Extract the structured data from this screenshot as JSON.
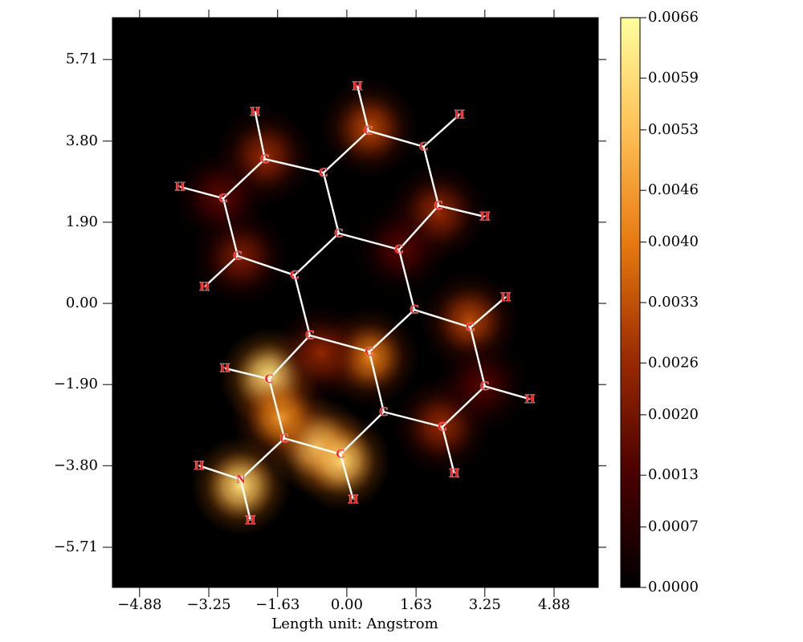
{
  "chart_data": {
    "type": "heatmap",
    "x_label": "Length unit: Angstrom",
    "xlim": [
      -5.52,
      5.92
    ],
    "xticks": [
      {
        "value": -4.88,
        "label": "−4.88"
      },
      {
        "value": -3.25,
        "label": "−3.25"
      },
      {
        "value": -1.63,
        "label": "−1.63"
      },
      {
        "value": 0,
        "label": "0.00"
      },
      1.63,
      3.25,
      4.88
    ],
    "ylim": [
      -6.65,
      6.69
    ],
    "yticks": [
      {
        "value": -5.71,
        "label": "−5.71"
      },
      {
        "value": -3.8,
        "label": "−3.80"
      },
      {
        "value": -1.9,
        "label": "−1.90"
      },
      {
        "value": 0,
        "label": "0.00"
      },
      {
        "value": 1.9,
        "label": "1.90"
      },
      {
        "value": 3.8,
        "label": "3.80"
      },
      5.71
    ],
    "zlim": [
      0,
      0.0066
    ],
    "zticks": [
      {
        "value": 0,
        "label": "0.0000"
      },
      0.0007,
      0.0013,
      {
        "value": 0.002,
        "label": "0.0020"
      },
      0.0026,
      0.0033,
      {
        "value": 0.004,
        "label": "0.0040"
      },
      0.0046,
      0.0053,
      0.0059,
      0.0066
    ],
    "colormap": [
      "#000000",
      "#4a0000",
      "#9a2a00",
      "#e6780f",
      "#ffbf55",
      "#ffff9e"
    ],
    "peaks": [
      {
        "x": -1.83,
        "y": -1.73,
        "value": 0.0062
      },
      {
        "x": -2.5,
        "y": -4.27,
        "value": 0.006
      },
      {
        "x": -0.7,
        "y": -3.33,
        "value": 0.006
      },
      {
        "x": -0.13,
        "y": -3.7,
        "value": 0.0058
      },
      {
        "x": -1.55,
        "y": -2.67,
        "value": 0.0045
      },
      {
        "x": 0.53,
        "y": -1.26,
        "value": 0.0042
      },
      {
        "x": -0.6,
        "y": -1.17,
        "value": 0.0025
      },
      {
        "x": 0.53,
        "y": 4.1,
        "value": 0.0032
      },
      {
        "x": -1.93,
        "y": 3.44,
        "value": 0.0026
      },
      {
        "x": 2.89,
        "y": -0.41,
        "value": 0.0032
      },
      {
        "x": 2.14,
        "y": 2.12,
        "value": 0.0026
      },
      {
        "x": 2.23,
        "y": -2.86,
        "value": 0.0026
      },
      {
        "x": -2.5,
        "y": 1.09,
        "value": 0.0022
      },
      {
        "x": -2.97,
        "y": 2.5,
        "value": 0.0016
      },
      {
        "x": 1.29,
        "y": 1.28,
        "value": 0.0015
      },
      {
        "x": 3.18,
        "y": -1.92,
        "value": 0.0015
      }
    ],
    "atoms": [
      {
        "element": "C",
        "x": 0.51,
        "y": 4.04
      },
      {
        "element": "H",
        "x": 0.25,
        "y": 5.09
      },
      {
        "element": "C",
        "x": 1.81,
        "y": 3.67
      },
      {
        "element": "H",
        "x": 2.65,
        "y": 4.42
      },
      {
        "element": "C",
        "x": 2.16,
        "y": 2.29
      },
      {
        "element": "H",
        "x": 3.25,
        "y": 2.03
      },
      {
        "element": "C",
        "x": 1.23,
        "y": 1.26
      },
      {
        "element": "C",
        "x": -0.19,
        "y": 1.64
      },
      {
        "element": "C",
        "x": -0.55,
        "y": 3.06
      },
      {
        "element": "C",
        "x": -1.93,
        "y": 3.38
      },
      {
        "element": "H",
        "x": -2.16,
        "y": 4.49
      },
      {
        "element": "C",
        "x": -2.91,
        "y": 2.46
      },
      {
        "element": "H",
        "x": -3.93,
        "y": 2.73
      },
      {
        "element": "C",
        "x": -2.57,
        "y": 1.11
      },
      {
        "element": "H",
        "x": -3.35,
        "y": 0.39
      },
      {
        "element": "C",
        "x": -1.23,
        "y": 0.66
      },
      {
        "element": "C",
        "x": 1.59,
        "y": -0.15
      },
      {
        "element": "C",
        "x": 2.91,
        "y": -0.56
      },
      {
        "element": "H",
        "x": 3.74,
        "y": 0.15
      },
      {
        "element": "C",
        "x": 3.25,
        "y": -1.94
      },
      {
        "element": "H",
        "x": 4.31,
        "y": -2.24
      },
      {
        "element": "C",
        "x": 2.25,
        "y": -2.89
      },
      {
        "element": "H",
        "x": 2.53,
        "y": -3.98
      },
      {
        "element": "C",
        "x": 0.87,
        "y": -2.54
      },
      {
        "element": "C",
        "x": 0.53,
        "y": -1.13
      },
      {
        "element": "C",
        "x": -0.87,
        "y": -0.75
      },
      {
        "element": "C",
        "x": -1.83,
        "y": -1.77
      },
      {
        "element": "H",
        "x": -2.87,
        "y": -1.52
      },
      {
        "element": "C",
        "x": -1.47,
        "y": -3.16
      },
      {
        "element": "N",
        "x": -2.5,
        "y": -4.12
      },
      {
        "element": "H",
        "x": -3.48,
        "y": -3.8
      },
      {
        "element": "H",
        "x": -2.27,
        "y": -5.08
      },
      {
        "element": "C",
        "x": -0.15,
        "y": -3.53
      },
      {
        "element": "H",
        "x": 0.15,
        "y": -4.59
      }
    ],
    "bonds": [
      [
        0,
        1
      ],
      [
        0,
        2
      ],
      [
        2,
        3
      ],
      [
        2,
        4
      ],
      [
        4,
        5
      ],
      [
        4,
        6
      ],
      [
        6,
        7
      ],
      [
        7,
        8
      ],
      [
        8,
        0
      ],
      [
        8,
        9
      ],
      [
        9,
        10
      ],
      [
        9,
        11
      ],
      [
        11,
        12
      ],
      [
        11,
        13
      ],
      [
        13,
        14
      ],
      [
        13,
        15
      ],
      [
        15,
        7
      ],
      [
        6,
        16
      ],
      [
        16,
        17
      ],
      [
        17,
        18
      ],
      [
        17,
        19
      ],
      [
        19,
        20
      ],
      [
        19,
        21
      ],
      [
        21,
        22
      ],
      [
        21,
        23
      ],
      [
        23,
        24
      ],
      [
        24,
        16
      ],
      [
        24,
        25
      ],
      [
        25,
        15
      ],
      [
        25,
        26
      ],
      [
        26,
        27
      ],
      [
        26,
        28
      ],
      [
        28,
        29
      ],
      [
        29,
        30
      ],
      [
        29,
        31
      ],
      [
        28,
        32
      ],
      [
        32,
        33
      ],
      [
        32,
        23
      ]
    ]
  }
}
